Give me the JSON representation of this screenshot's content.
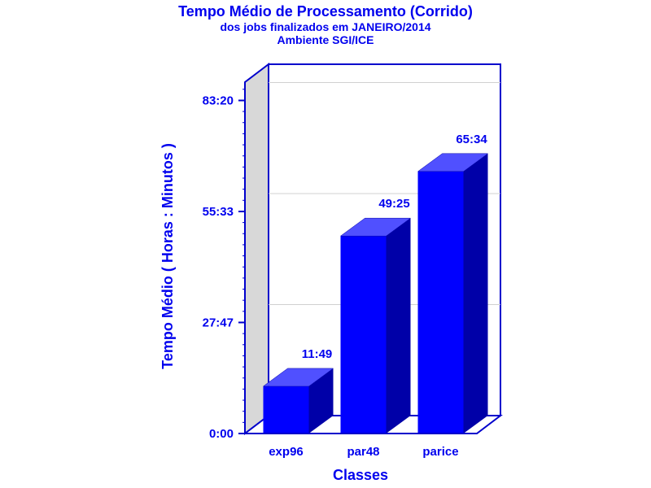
{
  "chart_data": {
    "type": "bar",
    "title": "Tempo Médio de Processamento (Corrido)",
    "subtitle": "dos jobs finalizados em JANEIRO/2014",
    "subtitle2": "Ambiente SGI/ICE",
    "xlabel": "Classes",
    "ylabel": "Tempo Médio ( Horas : Minutos )",
    "categories": [
      "exp96",
      "par48",
      "parice"
    ],
    "values": [
      11.8167,
      49.4167,
      65.5667
    ],
    "value_labels": [
      "11:49",
      "49:25",
      "65:34"
    ],
    "yticks": [
      0,
      27.7833,
      55.55,
      83.3333
    ],
    "ytick_labels": [
      "0:00",
      "27:47",
      "55:33",
      "83:20"
    ],
    "ylim": [
      0,
      88
    ],
    "grid": true,
    "colors": {
      "bar_front": "#0000ff",
      "bar_top": "#5050ff",
      "bar_side": "#0000a8",
      "axis": "#0000cc",
      "text": "#0000ee",
      "wall_side": "#d8d8d8",
      "gridline": "#d0d0d0"
    }
  }
}
